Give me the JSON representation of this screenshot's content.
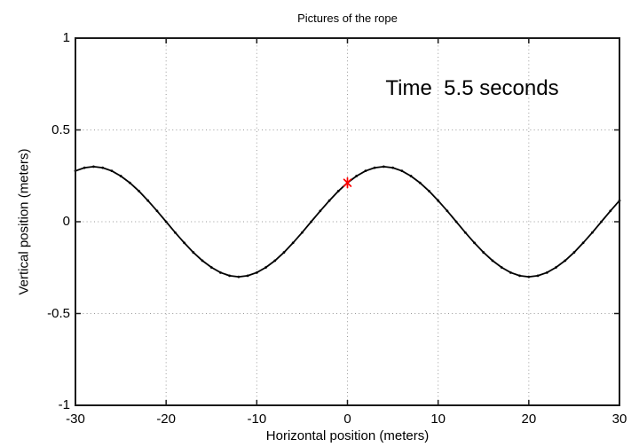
{
  "figure": {
    "title": "Pictures of the rope",
    "annotation": "Time  5.5 seconds",
    "xlabel": "Horizontal position (meters)",
    "ylabel": "Vertical position (meters)"
  },
  "colors": {
    "background": "#ffffff",
    "axis": "#1a1a1a",
    "grid": "#9a9a9a",
    "curve": "#000000",
    "marker": "#ff0000"
  },
  "chart_data": {
    "type": "line",
    "title": "Pictures of the rope",
    "xlabel": "Horizontal position (meters)",
    "ylabel": "Vertical position (meters)",
    "xlim": [
      -30,
      30
    ],
    "ylim": [
      -1,
      1
    ],
    "x_ticks": [
      -30,
      -20,
      -10,
      0,
      10,
      20,
      30
    ],
    "y_ticks": [
      -1,
      -0.5,
      0,
      0.5,
      1
    ],
    "x_tick_labels": [
      "-30",
      "-20",
      "-10",
      "0",
      "10",
      "20",
      "30"
    ],
    "y_tick_labels": [
      "-1",
      "-0.5",
      "0",
      "0.5",
      "1"
    ],
    "grid": true,
    "legend": "none",
    "annotations": [
      {
        "text": "Time  5.5 seconds",
        "x": 13.7,
        "y": 0.72
      }
    ],
    "wave_model": {
      "amplitude_m": 0.3,
      "wavelength_m": 32,
      "crest_at_x_m": 4
    },
    "series": [
      {
        "name": "rope",
        "style": "line-with-point-dots",
        "color": "#000000",
        "x": [
          -30,
          -29,
          -28,
          -27,
          -26,
          -25,
          -24,
          -23,
          -22,
          -21,
          -20,
          -19,
          -18,
          -17,
          -16,
          -15,
          -14,
          -13,
          -12,
          -11,
          -10,
          -9,
          -8,
          -7,
          -6,
          -5,
          -4,
          -3,
          -2,
          -1,
          0,
          1,
          2,
          3,
          4,
          5,
          6,
          7,
          8,
          9,
          10,
          11,
          12,
          13,
          14,
          15,
          16,
          17,
          18,
          19,
          20,
          21,
          22,
          23,
          24,
          25,
          26,
          27,
          28,
          29,
          30
        ],
        "y": [
          0.277,
          0.294,
          0.3,
          0.294,
          0.277,
          0.249,
          0.212,
          0.167,
          0.115,
          0.059,
          0.0,
          -0.059,
          -0.115,
          -0.167,
          -0.212,
          -0.249,
          -0.277,
          -0.294,
          -0.3,
          -0.294,
          -0.277,
          -0.249,
          -0.212,
          -0.167,
          -0.115,
          -0.059,
          0.0,
          0.059,
          0.115,
          0.167,
          0.212,
          0.249,
          0.277,
          0.294,
          0.3,
          0.294,
          0.277,
          0.249,
          0.212,
          0.167,
          0.115,
          0.059,
          0.0,
          -0.059,
          -0.115,
          -0.167,
          -0.212,
          -0.249,
          -0.277,
          -0.294,
          -0.3,
          -0.294,
          -0.277,
          -0.249,
          -0.212,
          -0.167,
          -0.115,
          -0.059,
          0.0,
          0.059,
          0.115
        ]
      },
      {
        "name": "tracked-point",
        "style": "marker",
        "marker": "asterisk",
        "color": "#ff0000",
        "x": [
          0
        ],
        "y": [
          0.212
        ]
      }
    ]
  }
}
